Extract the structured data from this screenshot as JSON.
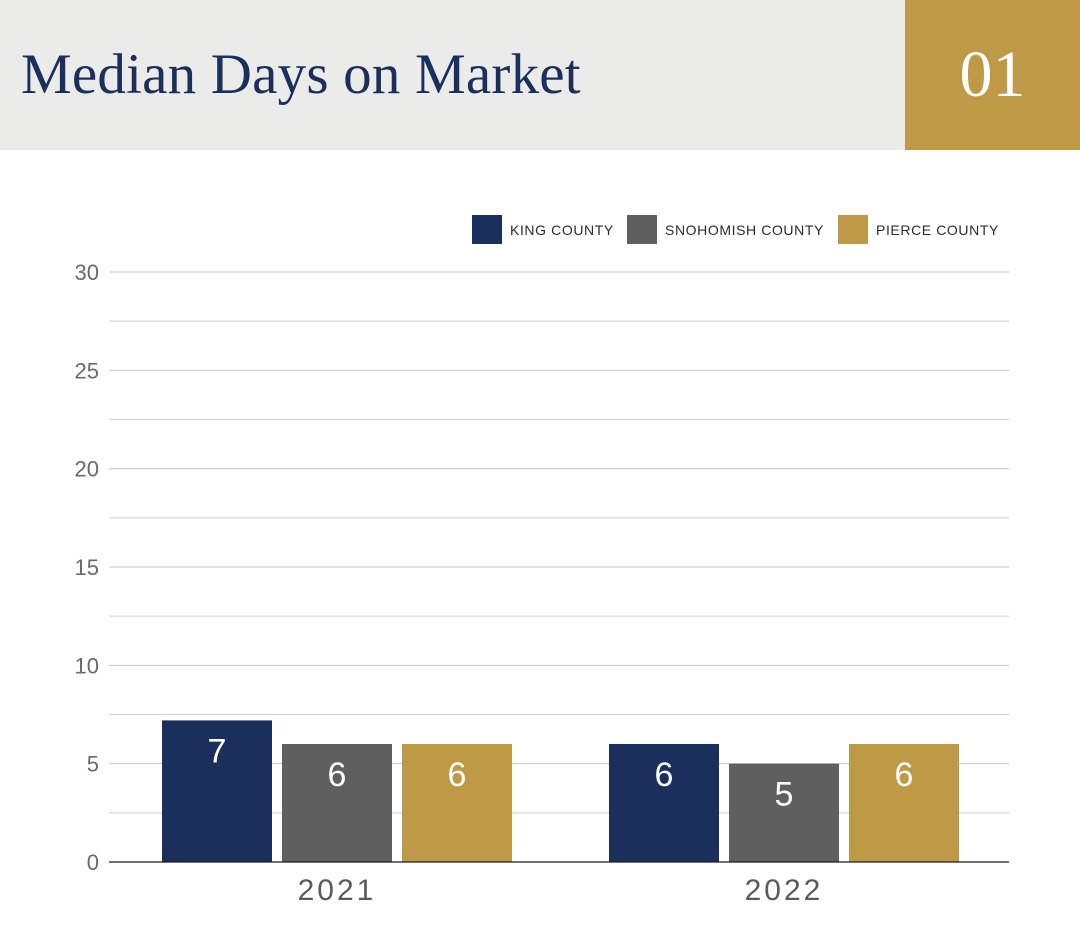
{
  "header": {
    "title": "Median Days on Market",
    "number": "01"
  },
  "colors": {
    "header_bg": "#ebebea",
    "title": "#1b2f5c",
    "accent_gold": "#bf9a46",
    "king": "#1b2f5c",
    "snohomish": "#5f5f5f",
    "pierce": "#bf9a46"
  },
  "chart_data": {
    "type": "bar",
    "title": "",
    "xlabel": "",
    "ylabel": "",
    "categories": [
      "2021",
      "2022"
    ],
    "series": [
      {
        "name": "KING COUNTY",
        "color": "#1b2f5c",
        "values": [
          7.2,
          6
        ],
        "labels": [
          "7",
          "6"
        ]
      },
      {
        "name": "SNOHOMISH COUNTY",
        "color": "#5f5f5f",
        "values": [
          6,
          5
        ],
        "labels": [
          "6",
          "5"
        ]
      },
      {
        "name": "PIERCE COUNTY",
        "color": "#bf9a46",
        "values": [
          6,
          6
        ],
        "labels": [
          "6",
          "6"
        ]
      }
    ],
    "ylim": [
      0,
      30
    ],
    "yticks": [
      0,
      5,
      10,
      15,
      20,
      25,
      30
    ],
    "grid": true,
    "legend_position": "top-right"
  }
}
